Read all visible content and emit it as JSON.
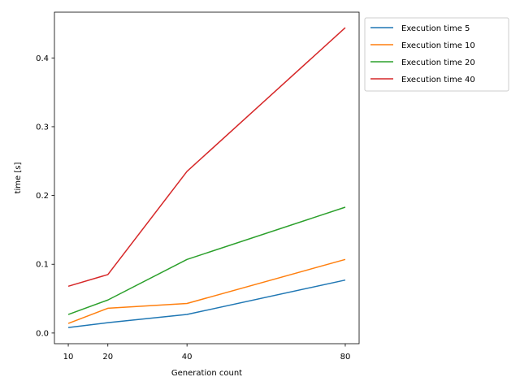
{
  "chart_data": {
    "type": "line",
    "title": "",
    "xlabel": "Generation count",
    "ylabel": "time [s]",
    "x": [
      10,
      20,
      40,
      80
    ],
    "xticks": [
      "10",
      "20",
      "40",
      "80"
    ],
    "xlim": [
      6.5,
      83.5
    ],
    "ylim": [
      -0.0155,
      0.4665
    ],
    "yticks": [
      "0.0",
      "0.1",
      "0.2",
      "0.3",
      "0.4"
    ],
    "grid": false,
    "legend_position": "outside-top-right",
    "series": [
      {
        "name": "Execution time 5",
        "color": "#1f77b4",
        "values": [
          0.008,
          0.015,
          0.027,
          0.077
        ]
      },
      {
        "name": "Execution time 10",
        "color": "#ff7f0e",
        "values": [
          0.014,
          0.036,
          0.043,
          0.107
        ]
      },
      {
        "name": "Execution time 20",
        "color": "#2ca02c",
        "values": [
          0.027,
          0.048,
          0.107,
          0.183
        ]
      },
      {
        "name": "Execution time 40",
        "color": "#d62728",
        "values": [
          0.068,
          0.085,
          0.235,
          0.444
        ]
      }
    ]
  }
}
